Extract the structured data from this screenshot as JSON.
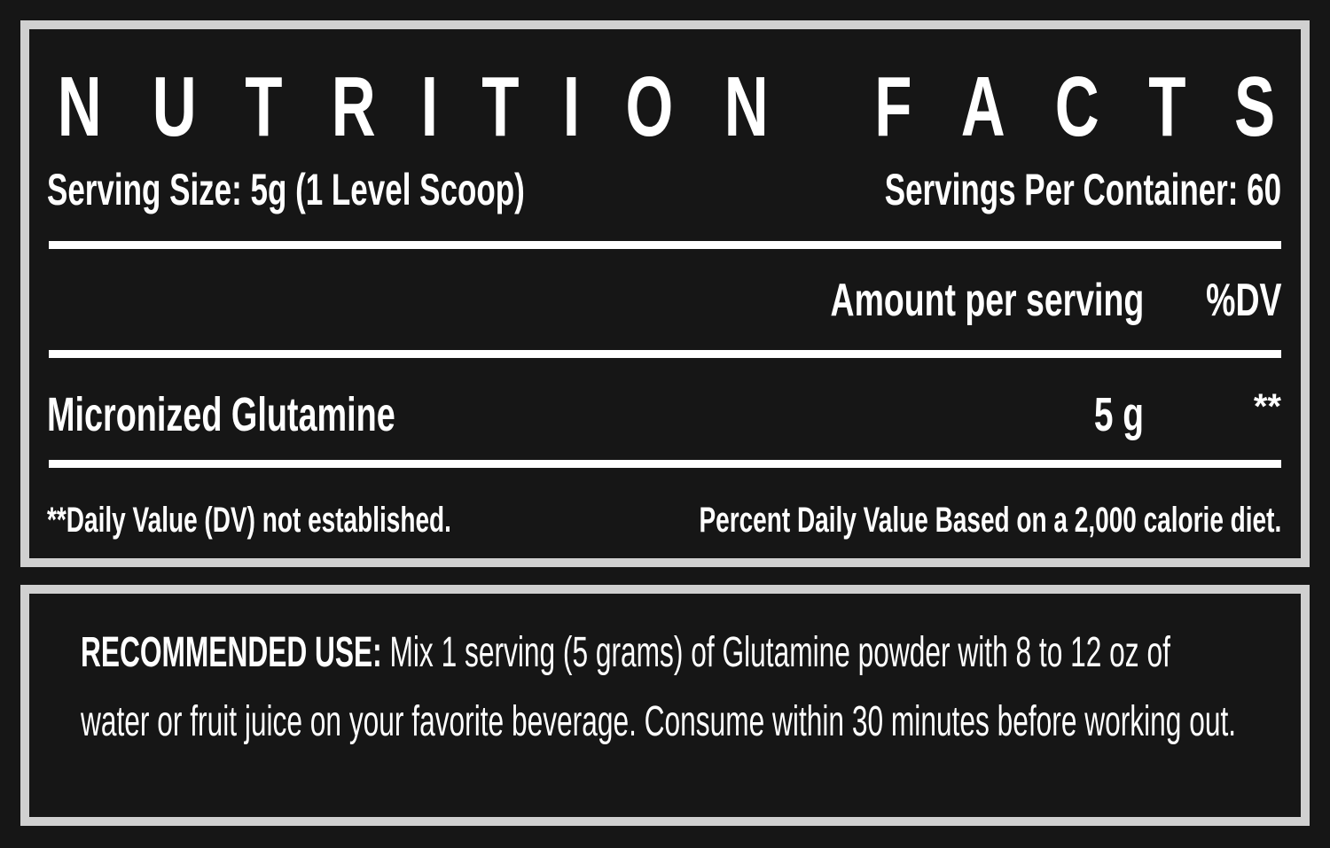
{
  "label": {
    "title": "NUTRITION FACTS",
    "serving_size": "Serving Size:  5g  (1 Level Scoop)",
    "servings_per_container": "Servings Per Container: 60",
    "header_amount": "Amount per serving",
    "header_dv": "%DV",
    "rows": [
      {
        "name": "Micronized Glutamine",
        "amount": "5 g",
        "dv": "**"
      }
    ],
    "footnote_left": "**Daily Value (DV) not established.",
    "footnote_right": "Percent Daily Value Based on a 2,000 calorie diet."
  },
  "recommended_use": {
    "heading": "RECOMMENDED USE:",
    "text": " Mix 1 serving (5 grams) of Glutamine powder with 8 to 12 oz of water or fruit juice on your favorite beverage. Consume within 30 minutes before working out."
  },
  "colors": {
    "background": "#161616",
    "border": "#d0d0d0",
    "text": "#ffffff"
  }
}
